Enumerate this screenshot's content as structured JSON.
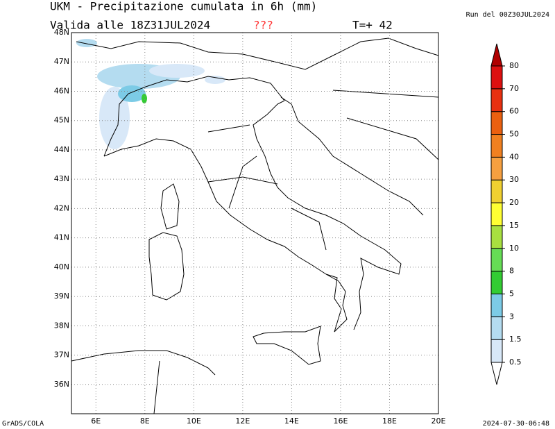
{
  "header": {
    "title": "UKM - Precipitazione cumulata in 6h (mm)",
    "valid": "Valida alle 18Z31JUL2024",
    "flag": "???",
    "lead": "T=+ 42",
    "run": "Run del 00Z30JUL2024"
  },
  "map": {
    "lon_range": [
      5,
      20
    ],
    "lat_range": [
      35,
      48
    ],
    "lon_ticks": [
      {
        "value": 6,
        "label": "6E"
      },
      {
        "value": 8,
        "label": "8E"
      },
      {
        "value": 10,
        "label": "10E"
      },
      {
        "value": 12,
        "label": "12E"
      },
      {
        "value": 14,
        "label": "14E"
      },
      {
        "value": 16,
        "label": "16E"
      },
      {
        "value": 18,
        "label": "18E"
      },
      {
        "value": 20,
        "label": "20E"
      }
    ],
    "lat_ticks": [
      {
        "value": 36,
        "label": "36N"
      },
      {
        "value": 37,
        "label": "37N"
      },
      {
        "value": 38,
        "label": "38N"
      },
      {
        "value": 39,
        "label": "39N"
      },
      {
        "value": 40,
        "label": "40N"
      },
      {
        "value": 41,
        "label": "41N"
      },
      {
        "value": 42,
        "label": "42N"
      },
      {
        "value": 43,
        "label": "43N"
      },
      {
        "value": 44,
        "label": "44N"
      },
      {
        "value": 45,
        "label": "45N"
      },
      {
        "value": 46,
        "label": "46N"
      },
      {
        "value": 47,
        "label": "47N"
      },
      {
        "value": 48,
        "label": "48N"
      }
    ]
  },
  "colorbar": {
    "levels": [
      0.5,
      1.5,
      3,
      5,
      8,
      10,
      15,
      20,
      30,
      40,
      50,
      60,
      70,
      80
    ],
    "colors": [
      "#ffffff",
      "#d8e8f8",
      "#b4dcf0",
      "#7ccbe6",
      "#33cc33",
      "#66dd55",
      "#a8e040",
      "#ffff33",
      "#f0d030",
      "#f6a040",
      "#f08020",
      "#ea6010",
      "#e83010",
      "#dd1010",
      "#b00000"
    ]
  },
  "footer": {
    "left": "GrADS/COLA",
    "right": "2024-07-30-06:48"
  }
}
